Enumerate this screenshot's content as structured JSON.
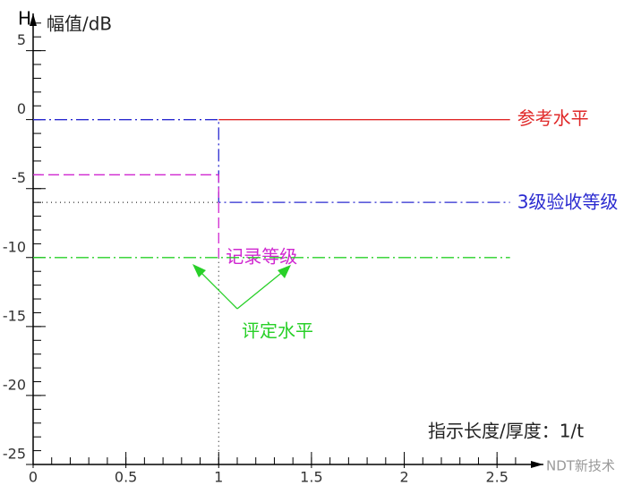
{
  "chart_data": {
    "type": "line",
    "y_axis_letter": "H",
    "y_label": "幅值/dB",
    "x_label": "指示长度/厚度：1/t",
    "watermark": "NDT新技术",
    "xlim": [
      0,
      2.75
    ],
    "ylim": [
      -25,
      7.7
    ],
    "xticks": [
      0,
      0.5,
      1,
      1.5,
      2,
      2.5
    ],
    "yticks": [
      5,
      0,
      -5,
      -10,
      -15,
      -20,
      -25
    ],
    "series": [
      {
        "name": "参考水平",
        "color": "#e02828",
        "dash": "none",
        "x": [
          1,
          2.57
        ],
        "values": [
          0,
          0
        ]
      },
      {
        "name": "3级验收等级",
        "color": "#2a2ad0",
        "dash": "14 4 2 4",
        "x": [
          0,
          1,
          1,
          2.57
        ],
        "values": [
          0,
          0,
          -6,
          -6
        ]
      },
      {
        "name": "记录等级",
        "color": "#d028d0",
        "dash": "12 5",
        "x": [
          0,
          1,
          1
        ],
        "values": [
          -4,
          -4,
          -10
        ]
      },
      {
        "color": "#28d028",
        "dash": "14 4 2 4",
        "x": [
          0,
          2.57
        ],
        "values": [
          -10,
          -10
        ]
      }
    ],
    "reference_lines": [
      {
        "x": [
          0,
          1
        ],
        "values": [
          -6,
          -6
        ]
      },
      {
        "x": [
          1,
          1
        ],
        "values": [
          -10,
          -25
        ]
      }
    ],
    "annotation": {
      "text": "评定水平",
      "color": "#28d028"
    }
  }
}
